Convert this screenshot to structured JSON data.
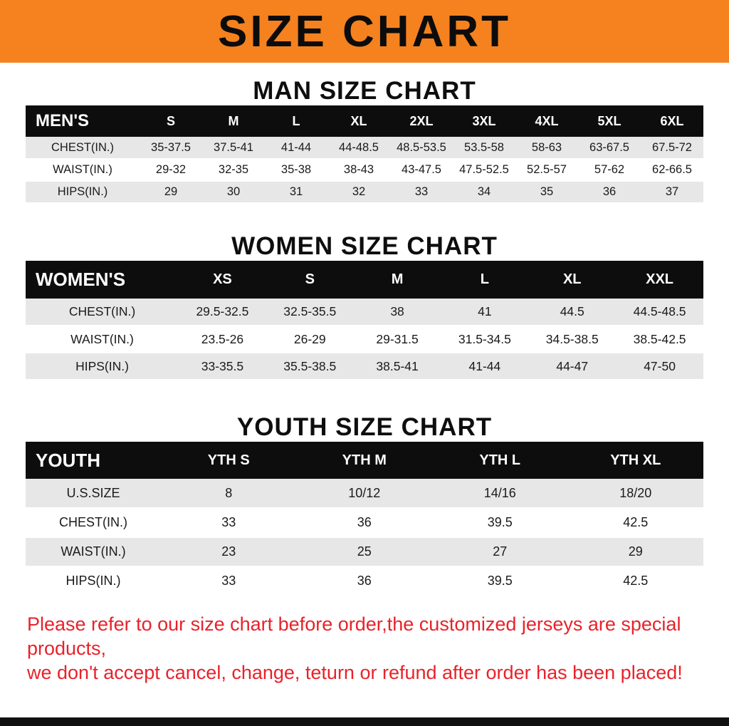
{
  "banner": {
    "title": "SIZE CHART"
  },
  "colors": {
    "banner_orange": "#f5821f",
    "header_black": "#0d0d0d",
    "row_gray": "#e7e7e7",
    "note_red": "#e8222a"
  },
  "chart_data": [
    {
      "type": "table",
      "title": "MAN SIZE CHART",
      "header": [
        "MEN'S",
        "S",
        "M",
        "L",
        "XL",
        "2XL",
        "3XL",
        "4XL",
        "5XL",
        "6XL"
      ],
      "rows": [
        [
          "CHEST(IN.)",
          "35-37.5",
          "37.5-41",
          "41-44",
          "44-48.5",
          "48.5-53.5",
          "53.5-58",
          "58-63",
          "63-67.5",
          "67.5-72"
        ],
        [
          "WAIST(IN.)",
          "29-32",
          "32-35",
          "35-38",
          "38-43",
          "43-47.5",
          "47.5-52.5",
          "52.5-57",
          "57-62",
          "62-66.5"
        ],
        [
          "HIPS(IN.)",
          "29",
          "30",
          "31",
          "32",
          "33",
          "34",
          "35",
          "36",
          "37"
        ]
      ]
    },
    {
      "type": "table",
      "title": "WOMEN SIZE CHART",
      "header": [
        "WOMEN'S",
        "XS",
        "S",
        "M",
        "L",
        "XL",
        "XXL"
      ],
      "rows": [
        [
          "CHEST(IN.)",
          "29.5-32.5",
          "32.5-35.5",
          "38",
          "41",
          "44.5",
          "44.5-48.5"
        ],
        [
          "WAIST(IN.)",
          "23.5-26",
          "26-29",
          "29-31.5",
          "31.5-34.5",
          "34.5-38.5",
          "38.5-42.5"
        ],
        [
          "HIPS(IN.)",
          "33-35.5",
          "35.5-38.5",
          "38.5-41",
          "41-44",
          "44-47",
          "47-50"
        ]
      ]
    },
    {
      "type": "table",
      "title": "YOUTH SIZE CHART",
      "header": [
        "YOUTH",
        "YTH S",
        "YTH M",
        "YTH L",
        "YTH XL"
      ],
      "rows": [
        [
          "U.S.SIZE",
          "8",
          "10/12",
          "14/16",
          "18/20"
        ],
        [
          "CHEST(IN.)",
          "33",
          "36",
          "39.5",
          "42.5"
        ],
        [
          "WAIST(IN.)",
          "23",
          "25",
          "27",
          "29"
        ],
        [
          "HIPS(IN.)",
          "33",
          "36",
          "39.5",
          "42.5"
        ]
      ]
    }
  ],
  "footer": {
    "line1": "Please refer to our size chart before order,the customized jerseys are special products,",
    "line2": "we don't accept cancel, change, teturn or refund after order has been placed!"
  }
}
